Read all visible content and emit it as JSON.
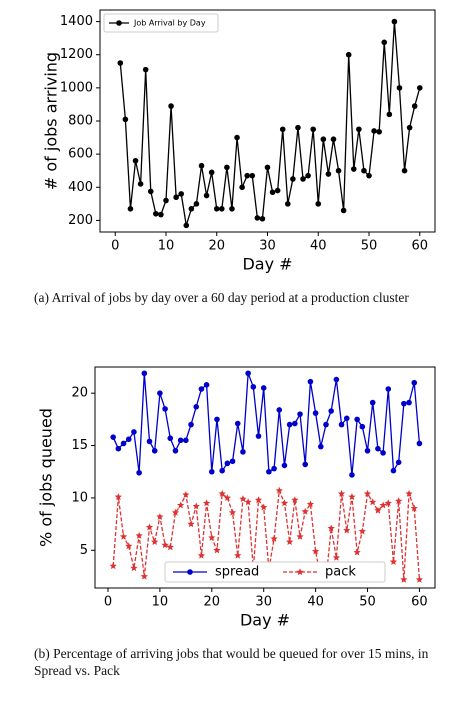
{
  "chart_data": [
    {
      "type": "line",
      "xlabel": "Day #",
      "ylabel": "# of jobs arriving",
      "caption": "(a) Arrival of jobs by day over a 60 day period at a production cluster",
      "x": [
        1,
        2,
        3,
        4,
        5,
        6,
        7,
        8,
        9,
        10,
        11,
        12,
        13,
        14,
        15,
        16,
        17,
        18,
        19,
        20,
        21,
        22,
        23,
        24,
        25,
        26,
        27,
        28,
        29,
        30,
        31,
        32,
        33,
        34,
        35,
        36,
        37,
        38,
        39,
        40,
        41,
        42,
        43,
        44,
        45,
        46,
        47,
        48,
        49,
        50,
        51,
        52,
        53,
        54,
        55,
        56,
        57,
        58,
        59,
        60
      ],
      "series": [
        {
          "name": "Job Arrival by Day",
          "color": "#000000",
          "marker": "circle",
          "linestyle": "solid",
          "values": [
            1150,
            810,
            270,
            560,
            420,
            1110,
            375,
            240,
            235,
            320,
            890,
            340,
            360,
            170,
            270,
            300,
            530,
            350,
            490,
            270,
            270,
            520,
            270,
            700,
            400,
            470,
            470,
            215,
            210,
            520,
            370,
            380,
            750,
            300,
            450,
            760,
            450,
            470,
            750,
            300,
            690,
            480,
            690,
            500,
            260,
            1200,
            510,
            750,
            500,
            470,
            740,
            735,
            1275,
            840,
            1400,
            1000,
            500,
            760,
            890,
            1000
          ]
        }
      ],
      "xlim": [
        -3,
        63
      ],
      "ylim": [
        130,
        1470
      ],
      "xticks": [
        0,
        10,
        20,
        30,
        40,
        50,
        60
      ],
      "yticks": [
        200,
        400,
        600,
        800,
        1000,
        1200,
        1400
      ],
      "legend": "upper left"
    },
    {
      "type": "line",
      "xlabel": "Day #",
      "ylabel": "% of jobs queued",
      "caption": "(b) Percentage of arriving jobs that would be queued for over 15 mins, in Spread vs. Pack",
      "x": [
        1,
        2,
        3,
        4,
        5,
        6,
        7,
        8,
        9,
        10,
        11,
        12,
        13,
        14,
        15,
        16,
        17,
        18,
        19,
        20,
        21,
        22,
        23,
        24,
        25,
        26,
        27,
        28,
        29,
        30,
        31,
        32,
        33,
        34,
        35,
        36,
        37,
        38,
        39,
        40,
        41,
        42,
        43,
        44,
        45,
        46,
        47,
        48,
        49,
        50,
        51,
        52,
        53,
        54,
        55,
        56,
        57,
        58,
        59,
        60
      ],
      "series": [
        {
          "name": "spread",
          "color": "#0000cc",
          "marker": "circle",
          "linestyle": "solid",
          "values": [
            15.8,
            14.7,
            15.2,
            15.6,
            16.3,
            12.4,
            21.9,
            15.4,
            14.5,
            20,
            18.5,
            15.7,
            14.5,
            15.5,
            15.5,
            17,
            18.7,
            20.4,
            20.8,
            12.5,
            17.5,
            12.6,
            13.3,
            13.5,
            17.1,
            14.4,
            21.9,
            20.6,
            15.9,
            20.5,
            12.5,
            12.8,
            18.4,
            13.1,
            17,
            17.1,
            18,
            13.2,
            21.1,
            18.1,
            14.9,
            17,
            18.3,
            21.3,
            17,
            17.6,
            12.2,
            17.5,
            16.8,
            14.5,
            19.1,
            14.7,
            14.3,
            20.4,
            12.6,
            13.4,
            19,
            19.1,
            21,
            15.2
          ]
        },
        {
          "name": "pack",
          "color": "#dd3333",
          "marker": "star",
          "linestyle": "dashed",
          "values": [
            3.5,
            10.1,
            6.3,
            5.4,
            3.3,
            6.4,
            2.5,
            7.2,
            5.8,
            8.2,
            5.5,
            5.3,
            8.6,
            9.3,
            10.3,
            7.5,
            9.2,
            4.5,
            9.5,
            6.2,
            5,
            10.4,
            10,
            8.6,
            4.5,
            9.9,
            9.6,
            3.2,
            9.8,
            9.1,
            3.2,
            6.1,
            10.7,
            9.5,
            5.8,
            9.8,
            6.3,
            8.7,
            9.4,
            4.9,
            2.3,
            2.2,
            7.1,
            4.3,
            10.4,
            6.9,
            10.1,
            4.8,
            6.8,
            10.4,
            9.6,
            8.8,
            9.3,
            9.5,
            3.9,
            9.7,
            2.2,
            10.4,
            9,
            2.2
          ]
        }
      ],
      "xlim": [
        -2.5,
        63
      ],
      "ylim": [
        1.4,
        22.5
      ],
      "xticks": [
        0,
        10,
        20,
        30,
        40,
        50,
        60
      ],
      "yticks": [
        5,
        10,
        15,
        20
      ],
      "legend": "lower center"
    }
  ]
}
